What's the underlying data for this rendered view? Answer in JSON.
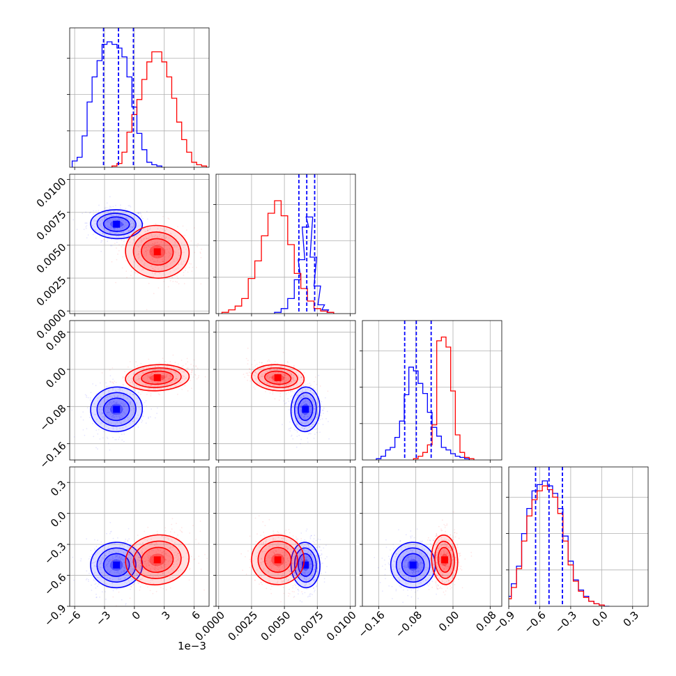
{
  "chart_data": {
    "type": "corner",
    "colors": {
      "series_a": "#0000ff",
      "series_b": "#ff0000",
      "grid": "#b0b0b0"
    },
    "grid": true,
    "parameters": [
      {
        "index": 0,
        "range": [
          -6.5,
          7.5
        ],
        "ticks": [
          "-6",
          "-3",
          "0",
          "3",
          "6"
        ],
        "tick_values": [
          -6,
          -3,
          0,
          3,
          6
        ],
        "offset_text": "1e−3"
      },
      {
        "index": 1,
        "range": [
          -0.0002,
          0.0104
        ],
        "ticks": [
          "0.0000",
          "0.0025",
          "0.0050",
          "0.0075",
          "0.0100"
        ],
        "tick_values": [
          0,
          0.0025,
          0.005,
          0.0075,
          0.01
        ]
      },
      {
        "index": 2,
        "range": [
          -0.195,
          0.105
        ],
        "ticks": [
          "-0.16",
          "-0.08",
          "0.00",
          "0.08"
        ],
        "tick_values": [
          -0.16,
          -0.08,
          0,
          0.08
        ]
      },
      {
        "index": 3,
        "range": [
          -0.9,
          0.45
        ],
        "ticks": [
          "-0.9",
          "-0.6",
          "-0.3",
          "0.0",
          "0.3"
        ],
        "tick_values": [
          -0.9,
          -0.6,
          -0.3,
          0,
          0.3
        ]
      }
    ],
    "series": [
      {
        "color": "#0000ff",
        "quantiles": [
          [
            -3.1,
            -1.6,
            -0.1
          ],
          [
            0.0061,
            0.0067,
            0.0073
          ],
          [
            -0.104,
            -0.079,
            -0.047
          ],
          [
            -0.64,
            -0.51,
            -0.38
          ]
        ],
        "means": [
          -1.8,
          0.0066,
          -0.086,
          -0.5
        ],
        "sds": [
          1.3,
          0.00055,
          0.024,
          0.11
        ],
        "hist": [
          [
            [
              -6,
              0.05
            ],
            [
              -5.5,
              0.08
            ],
            [
              -5,
              0.25
            ],
            [
              -4.5,
              0.52
            ],
            [
              -4,
              0.72
            ],
            [
              -3.5,
              0.85
            ],
            [
              -3,
              0.98
            ],
            [
              -2.5,
              1.0
            ],
            [
              -2,
              0.98
            ],
            [
              -1.5,
              0.95
            ],
            [
              -1,
              0.88
            ],
            [
              -0.5,
              0.72
            ],
            [
              0,
              0.48
            ],
            [
              0.5,
              0.27
            ],
            [
              1,
              0.14
            ],
            [
              1.5,
              0.04
            ],
            [
              2,
              0.02
            ],
            [
              2.5,
              0.01
            ]
          ],
          [
            [
              0.0045,
              0.01
            ],
            [
              0.005,
              0.04
            ],
            [
              0.0055,
              0.12
            ],
            [
              0.006,
              0.27
            ],
            [
              0.0063,
              0.43
            ],
            [
              0.0066,
              0.69
            ],
            [
              0.0069,
              0.77
            ],
            [
              0.0072,
              0.45
            ],
            [
              0.0075,
              0.22
            ],
            [
              0.0078,
              0.07
            ],
            [
              0.0081,
              0.03
            ],
            [
              0.0085,
              0.01
            ]
          ],
          [
            [
              -0.16,
              0.01
            ],
            [
              -0.15,
              0.03
            ],
            [
              -0.14,
              0.08
            ],
            [
              -0.13,
              0.1
            ],
            [
              -0.12,
              0.18
            ],
            [
              -0.11,
              0.31
            ],
            [
              -0.1,
              0.52
            ],
            [
              -0.09,
              0.74
            ],
            [
              -0.08,
              0.71
            ],
            [
              -0.07,
              0.61
            ],
            [
              -0.06,
              0.53
            ],
            [
              -0.05,
              0.38
            ],
            [
              -0.04,
              0.26
            ],
            [
              -0.03,
              0.19
            ],
            [
              -0.02,
              0.1
            ],
            [
              -0.01,
              0.08
            ],
            [
              0.0,
              0.05
            ],
            [
              0.01,
              0.03
            ],
            [
              0.02,
              0.02
            ],
            [
              0.03,
              0.01
            ]
          ],
          [
            [
              -0.9,
              0.08
            ],
            [
              -0.85,
              0.18
            ],
            [
              -0.8,
              0.32
            ],
            [
              -0.75,
              0.58
            ],
            [
              -0.7,
              0.78
            ],
            [
              -0.65,
              0.92
            ],
            [
              -0.6,
              0.97
            ],
            [
              -0.55,
              1.0
            ],
            [
              -0.5,
              0.96
            ],
            [
              -0.45,
              0.9
            ],
            [
              -0.4,
              0.78
            ],
            [
              -0.35,
              0.56
            ],
            [
              -0.3,
              0.36
            ],
            [
              -0.25,
              0.21
            ],
            [
              -0.2,
              0.13
            ],
            [
              -0.15,
              0.08
            ],
            [
              -0.1,
              0.04
            ],
            [
              -0.05,
              0.02
            ],
            [
              0.0,
              0.01
            ],
            [
              0.05,
              0.0
            ]
          ]
        ],
        "pair_corr": {
          "1-0": -0.1,
          "2-0": 0.15,
          "2-1": -0.05,
          "3-0": 0.1,
          "3-1": 0.05,
          "3-2": 0.1
        }
      },
      {
        "color": "#ff0000",
        "means": [
          2.3,
          0.0045,
          -0.018,
          -0.45
        ],
        "sds": [
          1.6,
          0.001,
          0.014,
          0.12
        ],
        "hist": [
          [
            [
              -2,
              0.01
            ],
            [
              -1.5,
              0.03
            ],
            [
              -1,
              0.12
            ],
            [
              -0.5,
              0.28
            ],
            [
              0,
              0.42
            ],
            [
              0.5,
              0.54
            ],
            [
              1,
              0.7
            ],
            [
              1.5,
              0.84
            ],
            [
              2,
              0.92
            ],
            [
              2.5,
              0.92
            ],
            [
              3,
              0.84
            ],
            [
              3.5,
              0.72
            ],
            [
              4,
              0.55
            ],
            [
              4.5,
              0.36
            ],
            [
              5,
              0.22
            ],
            [
              5.5,
              0.12
            ],
            [
              6,
              0.04
            ],
            [
              6.5,
              0.02
            ],
            [
              7,
              0.01
            ]
          ],
          [
            [
              0.0005,
              0.01
            ],
            [
              0.001,
              0.03
            ],
            [
              0.0015,
              0.06
            ],
            [
              0.002,
              0.12
            ],
            [
              0.0025,
              0.28
            ],
            [
              0.003,
              0.42
            ],
            [
              0.0035,
              0.62
            ],
            [
              0.004,
              0.8
            ],
            [
              0.0045,
              0.9
            ],
            [
              0.005,
              0.78
            ],
            [
              0.0055,
              0.55
            ],
            [
              0.006,
              0.32
            ],
            [
              0.0065,
              0.2
            ],
            [
              0.007,
              0.1
            ],
            [
              0.0075,
              0.04
            ],
            [
              0.008,
              0.02
            ],
            [
              0.0085,
              0.01
            ]
          ],
          [
            [
              -0.08,
              0.01
            ],
            [
              -0.07,
              0.03
            ],
            [
              -0.06,
              0.06
            ],
            [
              -0.05,
              0.12
            ],
            [
              -0.04,
              0.28
            ],
            [
              -0.03,
              0.95
            ],
            [
              -0.02,
              0.98
            ],
            [
              -0.01,
              0.9
            ],
            [
              0.0,
              0.55
            ],
            [
              0.01,
              0.2
            ],
            [
              0.02,
              0.06
            ],
            [
              0.03,
              0.02
            ],
            [
              0.04,
              0.01
            ]
          ],
          [
            [
              -0.9,
              0.06
            ],
            [
              -0.85,
              0.15
            ],
            [
              -0.8,
              0.3
            ],
            [
              -0.75,
              0.52
            ],
            [
              -0.7,
              0.72
            ],
            [
              -0.65,
              0.85
            ],
            [
              -0.6,
              0.92
            ],
            [
              -0.55,
              0.96
            ],
            [
              -0.5,
              0.93
            ],
            [
              -0.45,
              0.87
            ],
            [
              -0.4,
              0.74
            ],
            [
              -0.35,
              0.52
            ],
            [
              -0.3,
              0.33
            ],
            [
              -0.25,
              0.2
            ],
            [
              -0.2,
              0.12
            ],
            [
              -0.15,
              0.07
            ],
            [
              -0.1,
              0.04
            ],
            [
              -0.05,
              0.02
            ],
            [
              0.0,
              0.01
            ]
          ]
        ],
        "pair_corr": {
          "1-0": -0.2,
          "2-0": 0.2,
          "2-1": -0.25,
          "3-0": 0.3,
          "3-1": -0.05,
          "3-2": 0.05
        }
      }
    ]
  }
}
